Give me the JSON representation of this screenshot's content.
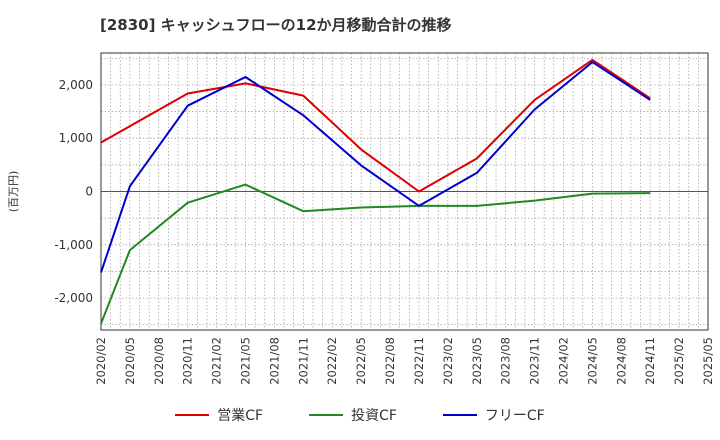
{
  "chart_data": {
    "type": "line",
    "title": "[2830]  キャッシュフローの12か月移動合計の推移",
    "ylabel": "(百万円)",
    "xlabel": "",
    "ylim": [
      -2600,
      2600
    ],
    "yticks": [
      -2000,
      -1000,
      0,
      1000,
      2000
    ],
    "ytick_labels": [
      "-2,000",
      "-1,000",
      "0",
      "1,000",
      "2,000"
    ],
    "categories": [
      "2020/02",
      "2020/05",
      "2020/08",
      "2020/11",
      "2021/02",
      "2021/05",
      "2021/08",
      "2021/11",
      "2022/02",
      "2022/05",
      "2022/08",
      "2022/11",
      "2023/02",
      "2023/05",
      "2023/08",
      "2023/11",
      "2024/02",
      "2024/05",
      "2024/08",
      "2024/11",
      "2025/02",
      "2025/05"
    ],
    "grid": true,
    "legend_position": "bottom",
    "series": [
      {
        "name": "営業CF",
        "color": "#dd0000",
        "values": [
          920,
          null,
          null,
          1840,
          null,
          2030,
          null,
          1800,
          null,
          790,
          null,
          0,
          null,
          620,
          null,
          1720,
          null,
          2470,
          null,
          1750,
          null,
          null
        ]
      },
      {
        "name": "投資CF",
        "color": "#228822",
        "values": [
          -2480,
          -1100,
          null,
          -210,
          null,
          130,
          null,
          -370,
          null,
          -300,
          null,
          -270,
          null,
          -270,
          null,
          -170,
          null,
          -40,
          null,
          -30,
          null,
          null
        ]
      },
      {
        "name": "フリーCF",
        "color": "#0000cc",
        "values": [
          -1520,
          100,
          null,
          1610,
          null,
          2150,
          null,
          1430,
          null,
          490,
          null,
          -270,
          null,
          350,
          null,
          1540,
          null,
          2430,
          null,
          1720,
          null,
          null
        ]
      }
    ]
  }
}
